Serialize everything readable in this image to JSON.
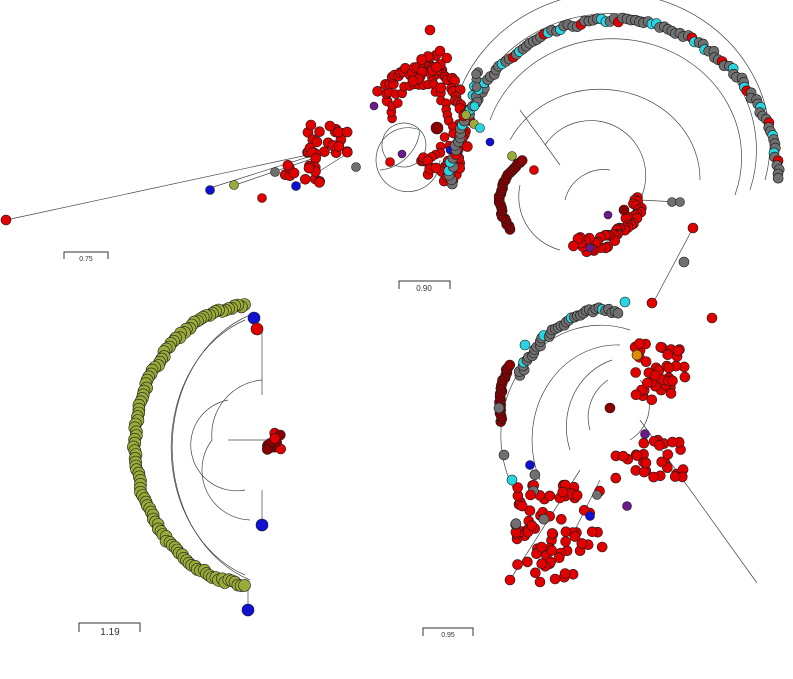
{
  "colors": {
    "red": "#e00000",
    "dark_red": "#8b0000",
    "grey": "#707070",
    "cyan": "#29d3e0",
    "olive": "#9aab3a",
    "blue": "#1010d0",
    "purple": "#6a1a8a",
    "orange": "#e08a00",
    "branch": "#444444"
  },
  "panels": [
    {
      "id": "top-left",
      "scale_bar": {
        "label": "0.75"
      }
    },
    {
      "id": "top-right",
      "scale_bar": {
        "label": "0.90"
      }
    },
    {
      "id": "bottom-left",
      "scale_bar": {
        "label": "1.19"
      }
    },
    {
      "id": "bottom-right",
      "scale_bar": {
        "label": "0.95"
      }
    }
  ]
}
